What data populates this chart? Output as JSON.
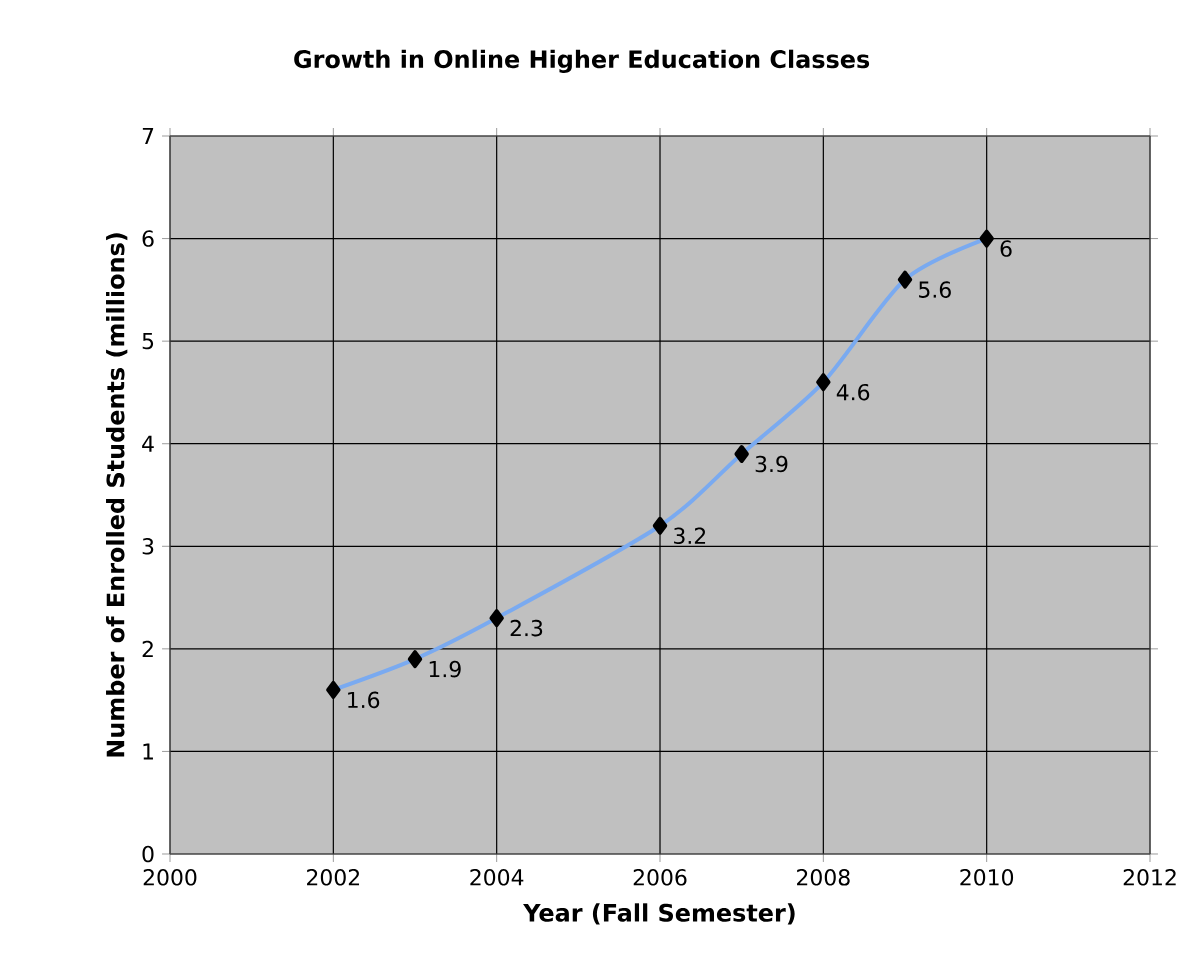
{
  "chart_data": {
    "type": "line",
    "title": "Growth in Online Higher Education Classes",
    "xlabel": "Year (Fall Semester)",
    "ylabel": "Number of Enrolled Students (millions)",
    "x": [
      2002,
      2003,
      2004,
      2006,
      2007,
      2008,
      2009,
      2010
    ],
    "series": [
      {
        "color": "#7aaaf0",
        "values": [
          1.6,
          1.9,
          2.3,
          3.2,
          3.9,
          4.6,
          5.6,
          6
        ]
      }
    ],
    "xlim": [
      2000,
      2012
    ],
    "xticks": [
      2000,
      2002,
      2004,
      2006,
      2008,
      2010,
      2012
    ],
    "ylim": [
      0,
      7
    ],
    "yticks": [
      0,
      1,
      2,
      3,
      4,
      5,
      6,
      7
    ],
    "grid": true,
    "marker": "diamond",
    "line_style": "solid",
    "data_labels": true
  }
}
